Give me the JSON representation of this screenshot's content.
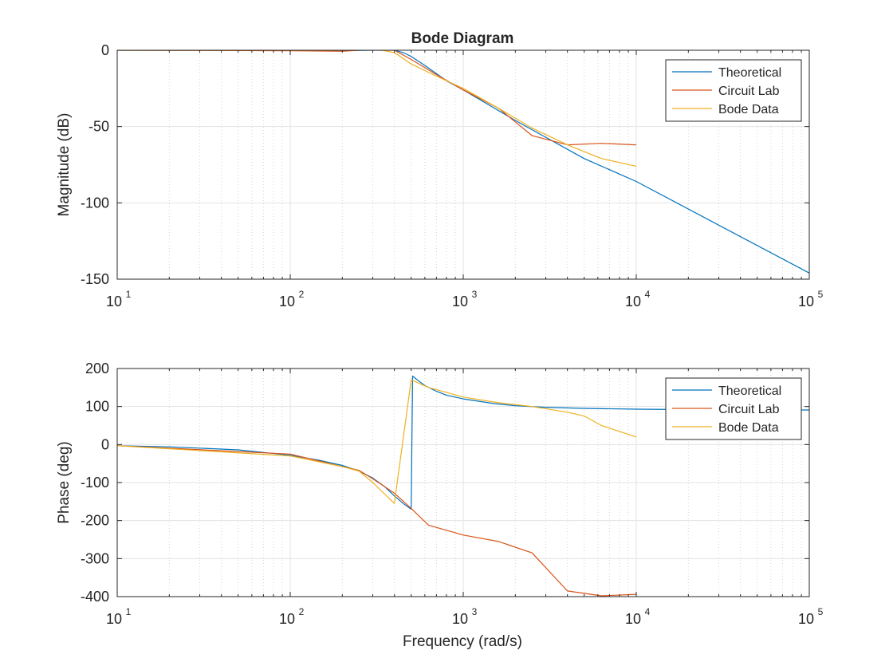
{
  "figure": {
    "title": "Bode Diagram",
    "xlabel": "Frequency (rad/s)"
  },
  "chart_data": [
    {
      "type": "line",
      "id": "magnitude",
      "title": "Bode Diagram",
      "xlabel": "",
      "ylabel": "Magnitude (dB)",
      "xscale": "log",
      "xlim": [
        10,
        100000
      ],
      "ylim": [
        -150,
        0
      ],
      "xticks": [
        10,
        100,
        1000,
        10000,
        100000
      ],
      "xtick_labels": [
        {
          "base": "10",
          "exp": "1"
        },
        {
          "base": "10",
          "exp": "2"
        },
        {
          "base": "10",
          "exp": "3"
        },
        {
          "base": "10",
          "exp": "4"
        },
        {
          "base": "10",
          "exp": "5"
        }
      ],
      "yticks": [
        0,
        -50,
        -100,
        -150
      ],
      "ytick_labels": [
        "0",
        "-50",
        "-100",
        "-150"
      ],
      "grid": true,
      "legend_position": "top-right",
      "series": [
        {
          "name": "Theoretical",
          "color": "#0072BD",
          "x": [
            10,
            50,
            100,
            200,
            300,
            400,
            450,
            500,
            600,
            800,
            1000,
            2000,
            5000,
            10000,
            100000
          ],
          "y": [
            0,
            0,
            -0.1,
            -0.2,
            0,
            0,
            -1.5,
            -4,
            -10,
            -20,
            -26,
            -46,
            -71,
            -86,
            -146
          ]
        },
        {
          "name": "Circuit Lab",
          "color": "#D95319",
          "x": [
            10,
            100,
            200,
            300,
            400,
            500,
            700,
            1000,
            1600,
            2500,
            4000,
            6300,
            10000
          ],
          "y": [
            0,
            -0.3,
            -0.7,
            0.5,
            0,
            -6,
            -16,
            -26,
            -38,
            -56,
            -62,
            -61,
            -62
          ]
        },
        {
          "name": "Bode Data",
          "color": "#EDB120",
          "x": [
            10,
            100,
            200,
            300,
            400,
            500,
            700,
            1000,
            1600,
            2500,
            4000,
            6300,
            10000
          ],
          "y": [
            0,
            0,
            0,
            1,
            -1.5,
            -9,
            -17,
            -25,
            -38,
            -51,
            -62,
            -71,
            -76
          ]
        }
      ]
    },
    {
      "type": "line",
      "id": "phase",
      "title": "",
      "xlabel": "Frequency (rad/s)",
      "ylabel": "Phase (deg)",
      "xscale": "log",
      "xlim": [
        10,
        100000
      ],
      "ylim": [
        -400,
        200
      ],
      "xticks": [
        10,
        100,
        1000,
        10000,
        100000
      ],
      "xtick_labels": [
        {
          "base": "10",
          "exp": "1"
        },
        {
          "base": "10",
          "exp": "2"
        },
        {
          "base": "10",
          "exp": "3"
        },
        {
          "base": "10",
          "exp": "4"
        },
        {
          "base": "10",
          "exp": "5"
        }
      ],
      "yticks": [
        200,
        100,
        0,
        -100,
        -200,
        -300,
        -400
      ],
      "ytick_labels": [
        "200",
        "100",
        "0",
        "-100",
        "-200",
        "-300",
        "-400"
      ],
      "grid": true,
      "legend_position": "top-right",
      "series": [
        {
          "name": "Theoretical",
          "color": "#0072BD",
          "x": [
            10,
            20,
            50,
            100,
            150,
            200,
            250,
            300,
            350,
            400,
            450,
            500,
            510,
            550,
            600,
            700,
            800,
            1000,
            1500,
            2000,
            3000,
            5000,
            10000,
            20000,
            50000,
            100000
          ],
          "y": [
            -3,
            -6,
            -14,
            -28,
            -42,
            -55,
            -70,
            -88,
            -110,
            -135,
            -155,
            -170,
            180,
            168,
            155,
            140,
            130,
            120,
            108,
            102,
            98,
            95,
            93,
            92,
            91,
            91
          ]
        },
        {
          "name": "Circuit Lab",
          "color": "#D95319",
          "x": [
            10,
            100,
            200,
            250,
            300,
            400,
            500,
            630,
            1000,
            1600,
            2500,
            4000,
            6300,
            10000
          ],
          "y": [
            -3,
            -25,
            -58,
            -68,
            -90,
            -128,
            -168,
            -212,
            -238,
            -255,
            -285,
            -385,
            -398,
            -394
          ]
        },
        {
          "name": "Bode Data",
          "color": "#EDB120",
          "x": [
            10,
            100,
            200,
            250,
            300,
            400,
            500,
            630,
            1000,
            1600,
            2500,
            4000,
            5000,
            6300,
            10000
          ],
          "y": [
            -3,
            -30,
            -58,
            -70,
            -100,
            -155,
            170,
            150,
            125,
            110,
            100,
            85,
            75,
            50,
            20
          ]
        }
      ]
    }
  ]
}
